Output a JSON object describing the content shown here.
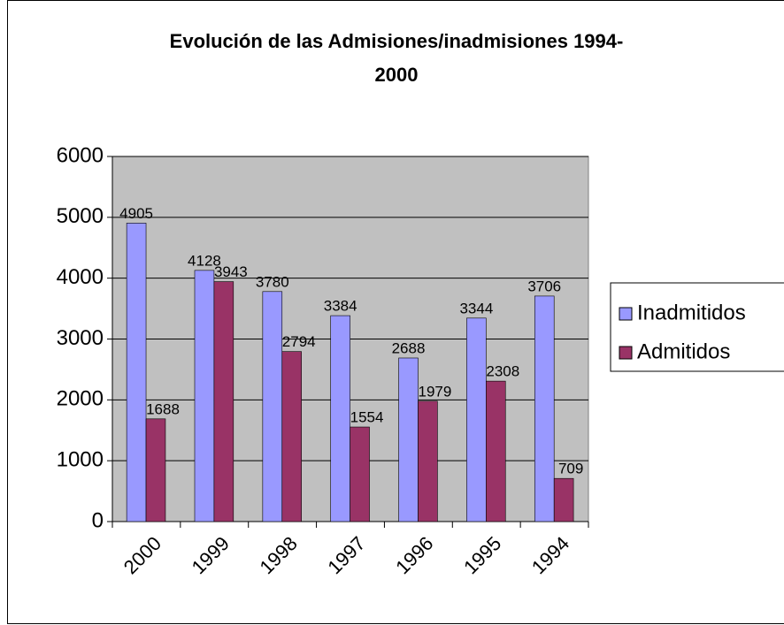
{
  "chart_data": {
    "type": "bar",
    "title": "Evolución de las Admisiones/inadmisiones 1994-2000",
    "categories": [
      "2000",
      "1999",
      "1998",
      "1997",
      "1996",
      "1995",
      "1994"
    ],
    "series": [
      {
        "name": "Inadmitidos",
        "color": "#9999ff",
        "values": [
          4905,
          4128,
          3780,
          3384,
          2688,
          3344,
          3706
        ]
      },
      {
        "name": "Admitidos",
        "color": "#993366",
        "values": [
          1688,
          3943,
          2794,
          1554,
          1979,
          2308,
          709
        ]
      }
    ],
    "ylim": [
      0,
      6000
    ],
    "yticks": [
      0,
      1000,
      2000,
      3000,
      4000,
      5000,
      6000
    ],
    "grid": true,
    "legend": "right"
  }
}
